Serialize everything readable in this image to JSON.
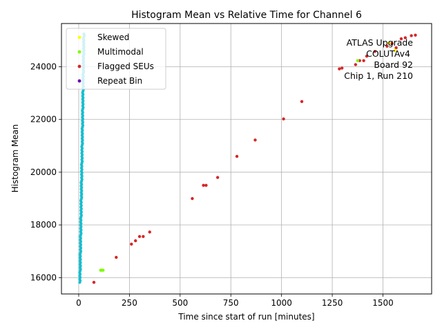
{
  "chart_data": {
    "type": "scatter",
    "title": "Histogram Mean vs Relative Time for Channel 6",
    "xlabel": "Time since start of run [minutes]",
    "ylabel": "Histogram Mean",
    "xlim": [
      -85,
      1740
    ],
    "ylim": [
      15380,
      25640
    ],
    "xticks": [
      0,
      250,
      500,
      750,
      1000,
      1250,
      1500
    ],
    "yticks": [
      16000,
      18000,
      20000,
      22000,
      24000
    ],
    "grid": true,
    "legend_placement": "top-left",
    "legend": [
      {
        "label": "Skewed",
        "color": "#ffff00"
      },
      {
        "label": "Multimodal",
        "color": "#7cfc00"
      },
      {
        "label": "Flagged SEUs",
        "color": "#d62728"
      },
      {
        "label": "Repeat Bin",
        "color": "#6a0dad"
      }
    ],
    "annotations": [
      "ATLAS Upgrade",
      "COLUTAv4",
      "Board 92",
      "Chip 1, Run 210"
    ],
    "series": [
      {
        "category": "normal",
        "color": "#17becf",
        "x_range": [
          0,
          30
        ],
        "y_range": [
          15820,
          25300
        ]
      },
      {
        "category": "flagged",
        "color": "#d62728",
        "points": [
          [
            75,
            15820
          ],
          [
            185,
            16770
          ],
          [
            260,
            17270
          ],
          [
            280,
            17400
          ],
          [
            300,
            17560
          ],
          [
            318,
            17560
          ],
          [
            350,
            17730
          ],
          [
            560,
            19000
          ],
          [
            615,
            19500
          ],
          [
            628,
            19500
          ],
          [
            685,
            19800
          ],
          [
            780,
            20600
          ],
          [
            870,
            21220
          ],
          [
            1010,
            22020
          ],
          [
            1100,
            22680
          ],
          [
            1285,
            23920
          ],
          [
            1298,
            23950
          ],
          [
            1365,
            24080
          ],
          [
            1385,
            24230
          ],
          [
            1405,
            24230
          ],
          [
            1420,
            24400
          ],
          [
            1460,
            24580
          ],
          [
            1520,
            24780
          ],
          [
            1530,
            24900
          ],
          [
            1545,
            24880
          ],
          [
            1565,
            24720
          ],
          [
            1590,
            25060
          ],
          [
            1610,
            25100
          ],
          [
            1640,
            25180
          ],
          [
            1660,
            25200
          ]
        ]
      },
      {
        "category": "multimodal",
        "color": "#7cfc00",
        "points": [
          [
            108,
            16280
          ],
          [
            113,
            16280
          ],
          [
            120,
            16280
          ],
          [
            1375,
            24230
          ]
        ]
      },
      {
        "category": "skewed",
        "color": "#ffff00",
        "points": [
          [
            1530,
            24900
          ],
          [
            1560,
            24620
          ]
        ]
      }
    ]
  }
}
